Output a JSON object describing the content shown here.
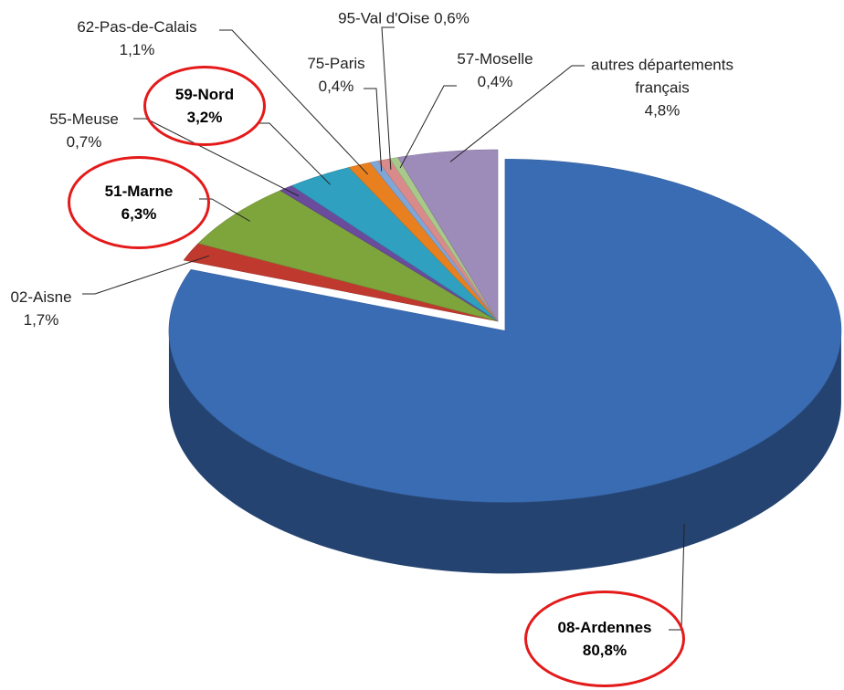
{
  "chart_data": {
    "type": "pie",
    "three_d": true,
    "categories": [
      "08-Ardennes",
      "02-Aisne",
      "51-Marne",
      "55-Meuse",
      "59-Nord",
      "62-Pas-de-Calais",
      "75-Paris",
      "95-Val d'Oise",
      "57-Moselle",
      "autres départements français"
    ],
    "values": [
      80.8,
      1.7,
      6.3,
      0.7,
      3.2,
      1.1,
      0.4,
      0.6,
      0.4,
      4.8
    ],
    "value_labels": [
      "80,8%",
      "1,7%",
      "6,3%",
      "0,7%",
      "3,2%",
      "1,1%",
      "0,4%",
      "0,6%",
      "0,4%",
      "4,8%"
    ],
    "colors": [
      "#3a6cb4",
      "#c0392f",
      "#7ea43c",
      "#6a4b9c",
      "#2fa0bf",
      "#e8801f",
      "#7fa6d9",
      "#d98b8b",
      "#a9c98b",
      "#9d8bb9"
    ],
    "highlighted": [
      true,
      false,
      true,
      false,
      true,
      false,
      false,
      false,
      false,
      false
    ]
  }
}
